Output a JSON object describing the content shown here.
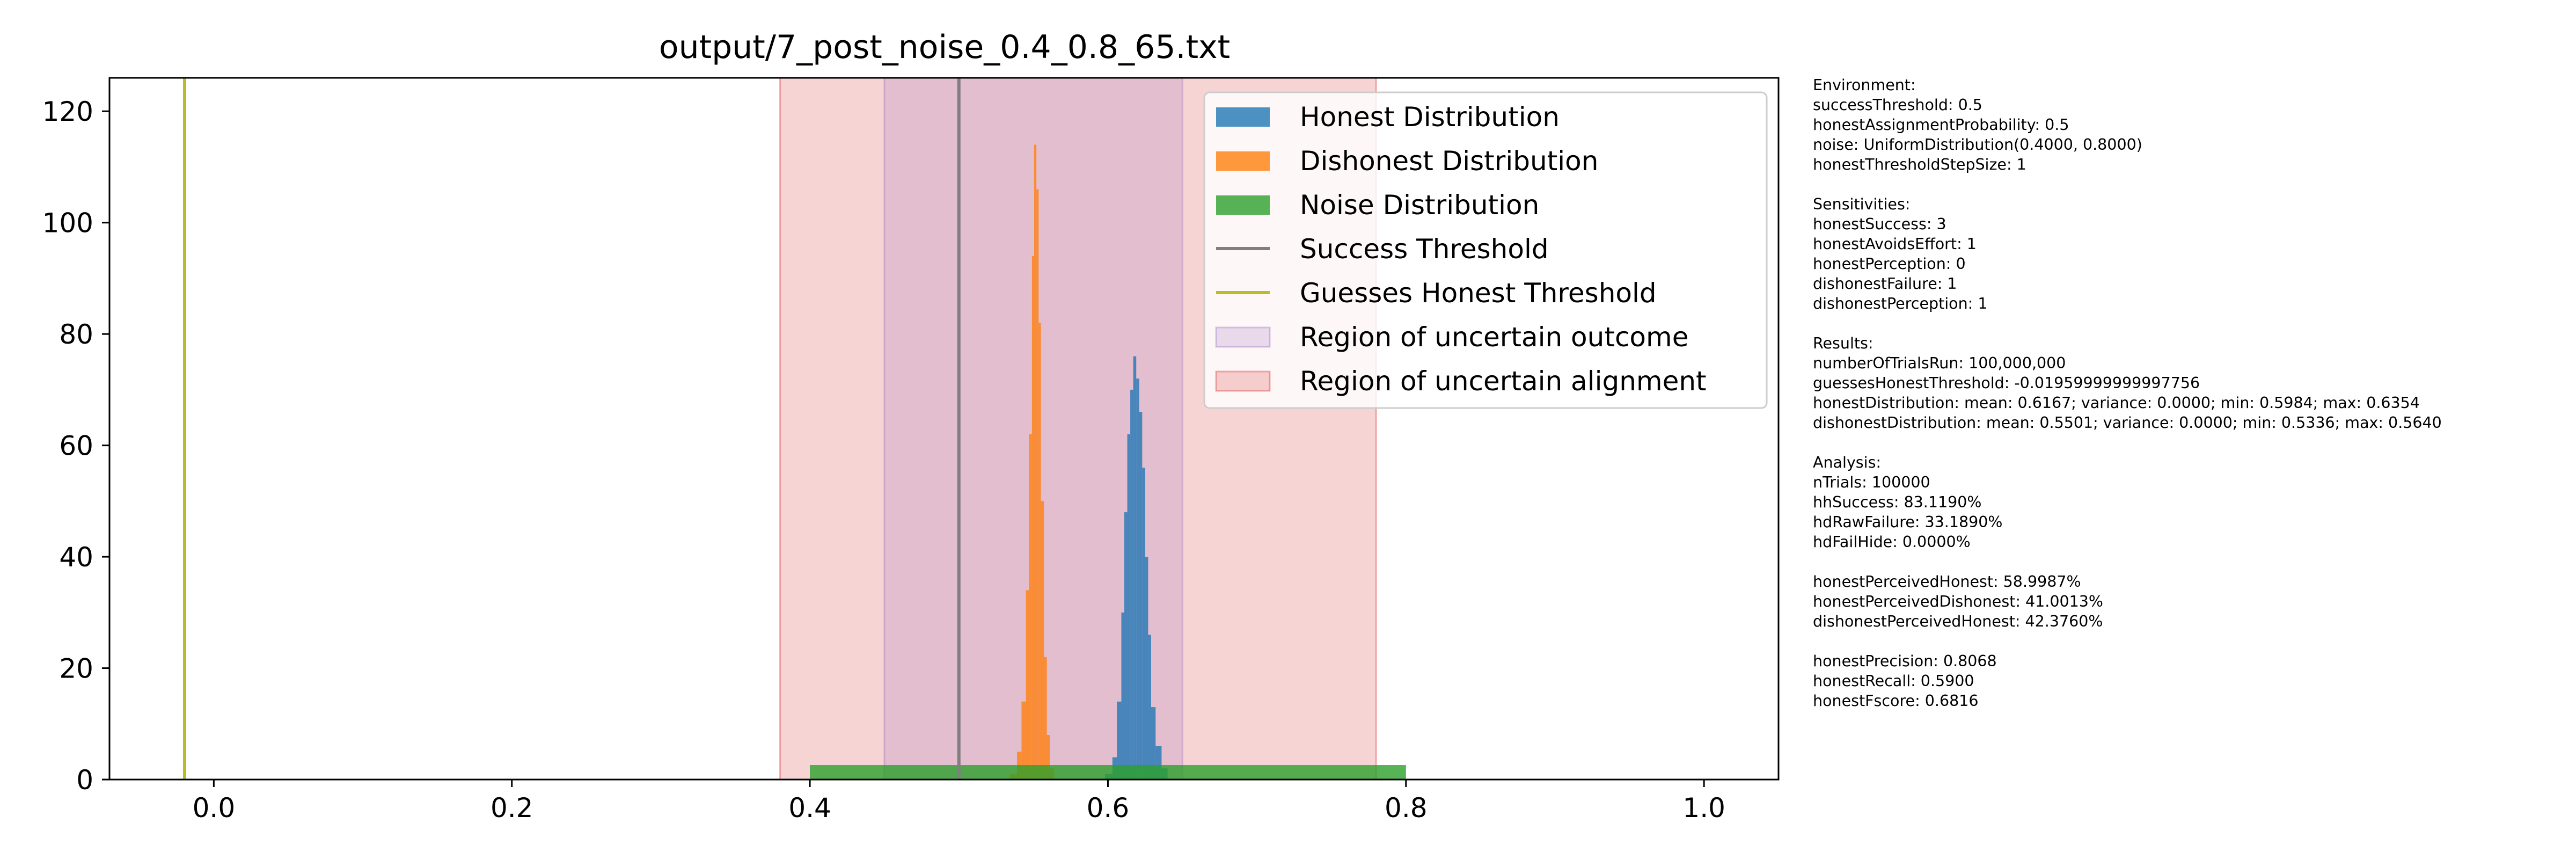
{
  "chart_data": {
    "type": "histogram",
    "title": "output/7_post_noise_0.4_0.8_65.txt",
    "xlim": [
      -0.07,
      1.05
    ],
    "ylim": [
      0,
      126
    ],
    "x_ticks": [
      0.0,
      0.2,
      0.4,
      0.6,
      0.8,
      1.0
    ],
    "x_tick_labels": [
      "0.0",
      "0.2",
      "0.4",
      "0.6",
      "0.8",
      "1.0"
    ],
    "y_ticks": [
      0,
      20,
      40,
      60,
      80,
      100,
      120
    ],
    "y_tick_labels": [
      "0",
      "20",
      "40",
      "60",
      "80",
      "100",
      "120"
    ],
    "grid": false,
    "legend_position": "upper right",
    "legend": [
      {
        "label": "Honest Distribution",
        "kind": "patch",
        "color": "#1f77b4"
      },
      {
        "label": "Dishonest Distribution",
        "kind": "patch",
        "color": "#ff7f0e"
      },
      {
        "label": "Noise Distribution",
        "kind": "patch",
        "color": "#2ca02c"
      },
      {
        "label": "Success Threshold",
        "kind": "line",
        "color": "#7f7f7f"
      },
      {
        "label": "Guesses Honest Threshold",
        "kind": "line",
        "color": "#bcbd22"
      },
      {
        "label": "Region of uncertain outcome",
        "kind": "patch",
        "color": "#9467bd"
      },
      {
        "label": "Region of uncertain alignment",
        "kind": "patch",
        "color": "#d62728"
      }
    ],
    "series": [
      {
        "name": "Honest Distribution",
        "color": "#1f77b4",
        "opacity": 0.8,
        "bins_x": [
          0.598,
          0.603,
          0.606,
          0.609,
          0.611,
          0.613,
          0.615,
          0.617,
          0.619,
          0.621,
          0.623,
          0.625,
          0.627,
          0.629,
          0.632,
          0.636,
          0.64
        ],
        "bins_y": [
          1,
          4,
          14,
          30,
          48,
          62,
          70,
          76,
          72,
          66,
          56,
          40,
          26,
          13,
          6,
          2,
          0
        ]
      },
      {
        "name": "Dishonest Distribution",
        "color": "#ff7f0e",
        "opacity": 0.8,
        "bins_x": [
          0.534,
          0.539,
          0.542,
          0.545,
          0.547,
          0.549,
          0.5505,
          0.552,
          0.5535,
          0.555,
          0.557,
          0.559,
          0.561,
          0.564
        ],
        "bins_y": [
          1,
          5,
          14,
          34,
          62,
          94,
          114,
          106,
          82,
          50,
          22,
          8,
          2,
          0
        ]
      },
      {
        "name": "Noise Distribution",
        "color": "#2ca02c",
        "opacity": 0.8,
        "bins_x": [
          0.4,
          0.8
        ],
        "bins_y": [
          2.6,
          2.6
        ]
      }
    ],
    "vlines": [
      {
        "name": "Success Threshold",
        "x": 0.5,
        "color": "#7f7f7f"
      },
      {
        "name": "Guesses Honest Threshold",
        "x": -0.01959999999997756,
        "color": "#bcbd22"
      }
    ],
    "regions": [
      {
        "name": "Region of uncertain alignment",
        "x0": 0.38,
        "x1": 0.78,
        "color": "#d62728",
        "opacity": 0.2
      },
      {
        "name": "Region of uncertain outcome",
        "x0": 0.45,
        "x1": 0.65,
        "color": "#9467bd",
        "opacity": 0.2
      }
    ]
  },
  "info_lines": [
    "Environment:",
    "successThreshold: 0.5",
    "honestAssignmentProbability: 0.5",
    "noise: UniformDistribution(0.4000, 0.8000)",
    "honestThresholdStepSize: 1",
    "",
    "Sensitivities:",
    "honestSuccess: 3",
    "honestAvoidsEffort: 1",
    "honestPerception: 0",
    "dishonestFailure: 1",
    "dishonestPerception: 1",
    "",
    "Results:",
    "numberOfTrialsRun: 100,000,000",
    "guessesHonestThreshold: -0.01959999999997756",
    "honestDistribution: mean: 0.6167; variance: 0.0000; min: 0.5984; max: 0.6354",
    "dishonestDistribution: mean: 0.5501; variance: 0.0000; min: 0.5336; max: 0.5640",
    "",
    "Analysis:",
    "nTrials: 100000",
    "hhSuccess: 83.1190%",
    "hdRawFailure: 33.1890%",
    "hdFailHide: 0.0000%",
    "",
    "honestPerceivedHonest: 58.9987%",
    "honestPerceivedDishonest: 41.0013%",
    "dishonestPerceivedHonest: 42.3760%",
    "",
    "honestPrecision: 0.8068",
    "honestRecall: 0.5900",
    "honestFscore: 0.6816"
  ]
}
